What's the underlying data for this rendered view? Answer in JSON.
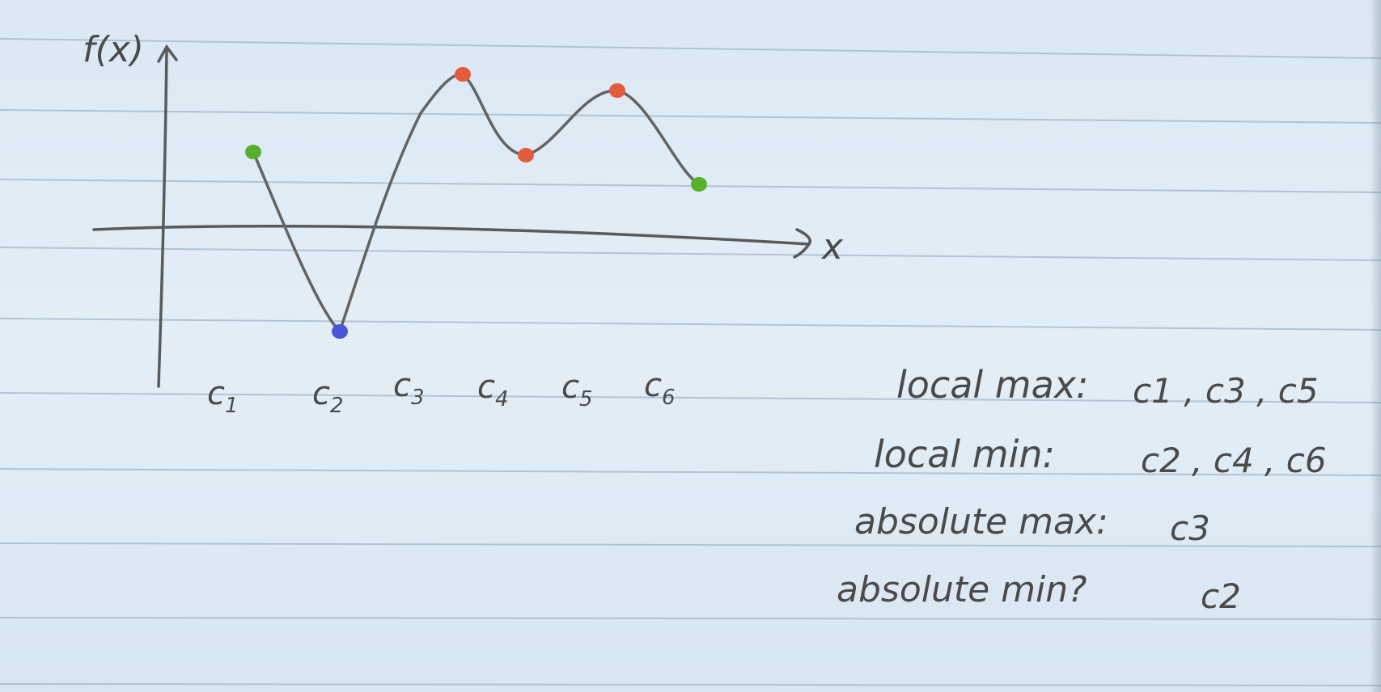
{
  "graph": {
    "y_axis_label": "f(x)",
    "x_axis_label": "x",
    "curve_color": "#5f5f5f",
    "points": [
      {
        "id": "c1",
        "label": "c",
        "sub": "1",
        "color": "#58b02a"
      },
      {
        "id": "c2",
        "label": "c",
        "sub": "2",
        "color": "#4a55d8"
      },
      {
        "id": "c3",
        "label": "c",
        "sub": "3",
        "color": "#e45a3c"
      },
      {
        "id": "c4",
        "label": "c",
        "sub": "4",
        "color": "#e45a3c"
      },
      {
        "id": "c5",
        "label": "c",
        "sub": "5",
        "color": "#e45a3c"
      },
      {
        "id": "c6",
        "label": "c",
        "sub": "6",
        "color": "#58b02a"
      }
    ]
  },
  "notes": [
    {
      "label": "local max:",
      "values": "c1 , c3 , c5"
    },
    {
      "label": "local min:",
      "values": "c2 , c4 , c6"
    },
    {
      "label": "absolute max:",
      "values": "c3"
    },
    {
      "label": "absolute min?",
      "values": "c2"
    }
  ]
}
